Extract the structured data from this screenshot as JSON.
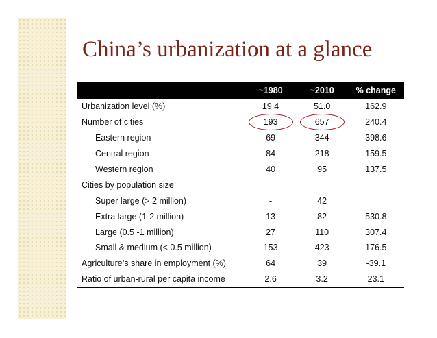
{
  "title": "China’s urbanization at a glance",
  "table": {
    "headers": [
      "",
      "~1980",
      "~2010",
      "% change"
    ],
    "rows": [
      {
        "label": "Urbanization level (%)",
        "v1980": "19.4",
        "v2010": "51.0",
        "change": "162.9"
      },
      {
        "label": "Number of cities",
        "v1980": "193",
        "v2010": "657",
        "change": "240.4"
      },
      {
        "label": "Eastern region",
        "v1980": "69",
        "v2010": "344",
        "change": "398.6"
      },
      {
        "label": "Central region",
        "v1980": "84",
        "v2010": "218",
        "change": "159.5"
      },
      {
        "label": "Western region",
        "v1980": "40",
        "v2010": "95",
        "change": "137.5"
      },
      {
        "label": "Cities by population size",
        "v1980": "",
        "v2010": "",
        "change": ""
      },
      {
        "label": "Super large (> 2 million)",
        "v1980": "-",
        "v2010": "42",
        "change": ""
      },
      {
        "label": "Extra large (1-2 million)",
        "v1980": "13",
        "v2010": "82",
        "change": "530.8"
      },
      {
        "label": "Large (0.5 -1 million)",
        "v1980": "27",
        "v2010": "110",
        "change": "307.4"
      },
      {
        "label": "Small & medium (< 0.5 million)",
        "v1980": "153",
        "v2010": "423",
        "change": "176.5"
      },
      {
        "label": "Agriculture’s share in employment (%)",
        "v1980": "64",
        "v2010": "39",
        "change": "-39.1"
      },
      {
        "label": "Ratio of urban-rural per capita  income",
        "v1980": "2.6",
        "v2010": "3.2",
        "change": "23.1"
      }
    ]
  },
  "colors": {
    "title": "#7a2418",
    "highlight_circle": "#a82020",
    "header_bg": "#000000",
    "side_panel": "#f7f0d8"
  }
}
